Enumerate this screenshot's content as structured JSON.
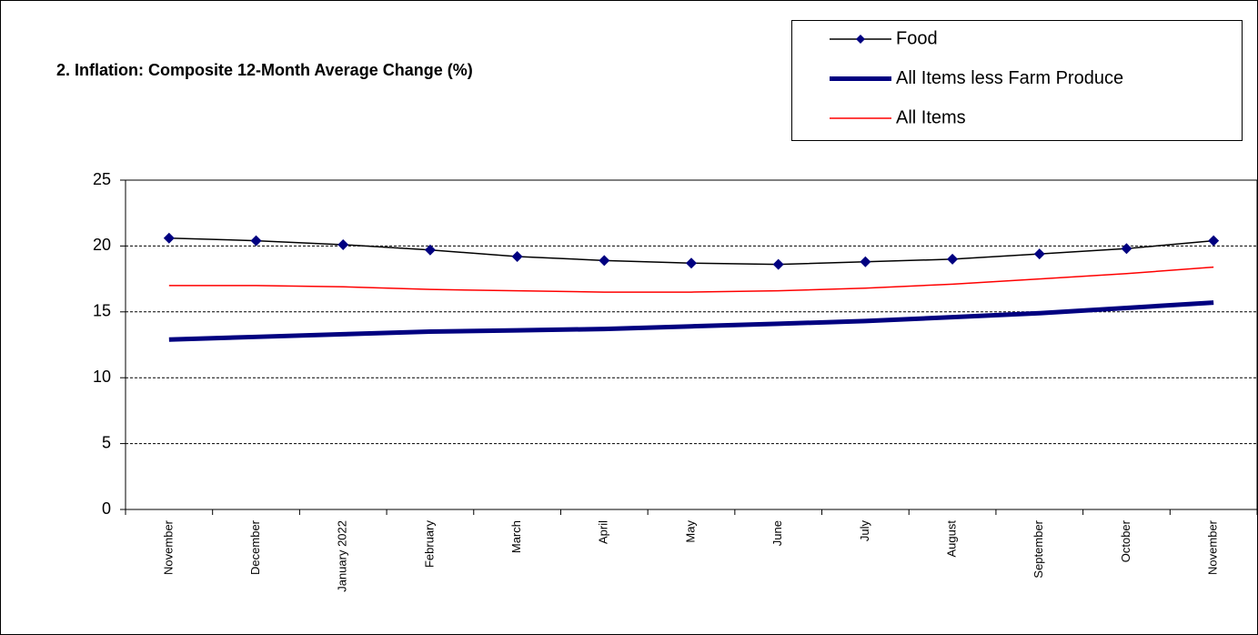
{
  "chart_data": {
    "type": "line",
    "title": "2. Inflation:  Composite 12-Month Average Change (%)",
    "categories": [
      "November",
      "December",
      "January 2022",
      "February",
      "March",
      "April",
      "May",
      "June",
      "July",
      "August",
      "September",
      "October",
      "November"
    ],
    "series": [
      {
        "name": "Food",
        "color": "#000000",
        "values": [
          20.6,
          20.4,
          20.1,
          19.7,
          19.2,
          18.9,
          18.7,
          18.6,
          18.8,
          19.0,
          19.4,
          19.8,
          20.4
        ]
      },
      {
        "name": "All Items less Farm Produce",
        "color": "#000080",
        "values": [
          12.9,
          13.1,
          13.3,
          13.5,
          13.6,
          13.7,
          13.9,
          14.1,
          14.3,
          14.6,
          14.9,
          15.3,
          15.7
        ]
      },
      {
        "name": "All Items",
        "color": "#ff0000",
        "values": [
          17.0,
          17.0,
          16.9,
          16.7,
          16.6,
          16.5,
          16.5,
          16.6,
          16.8,
          17.1,
          17.5,
          17.9,
          18.4
        ]
      }
    ],
    "ylim": [
      0,
      25
    ],
    "yticks": [
      0,
      5,
      10,
      15,
      20,
      25
    ],
    "grid": true
  }
}
